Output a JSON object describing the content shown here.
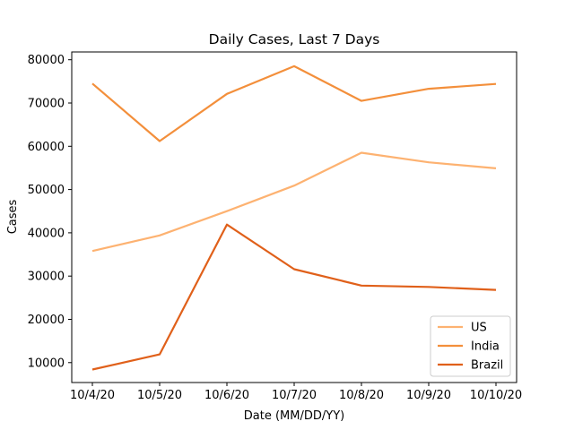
{
  "chart_data": {
    "type": "line",
    "title": "Daily Cases, Last 7 Days",
    "xlabel": "Date (MM/DD/YY)",
    "ylabel": "Cases",
    "categories": [
      "10/4/20",
      "10/5/20",
      "10/6/20",
      "10/7/20",
      "10/8/20",
      "10/9/20",
      "10/10/20"
    ],
    "ylim": [
      5400,
      81800
    ],
    "yticks": [
      10000,
      20000,
      30000,
      40000,
      50000,
      60000,
      70000,
      80000
    ],
    "ytick_labels": [
      "10000",
      "20000",
      "30000",
      "40000",
      "50000",
      "60000",
      "70000",
      "80000"
    ],
    "grid": false,
    "legend_position": "lower-right",
    "series": [
      {
        "name": "US",
        "color": "#fdb271",
        "values": [
          35800,
          39400,
          45000,
          50900,
          58500,
          56300,
          54900
        ]
      },
      {
        "name": "India",
        "color": "#f38f3b",
        "values": [
          74500,
          61200,
          72100,
          78500,
          70500,
          73300,
          74400
        ]
      },
      {
        "name": "Brazil",
        "color": "#e0601a",
        "values": [
          8400,
          11900,
          41900,
          31600,
          27800,
          27500,
          26800
        ]
      }
    ]
  }
}
